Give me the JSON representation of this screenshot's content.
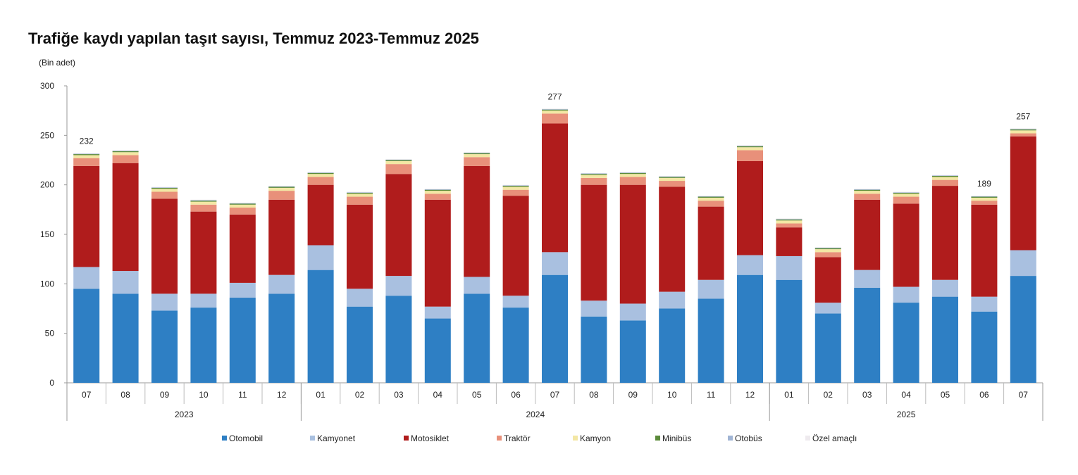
{
  "chart_data": {
    "type": "bar",
    "stacked": true,
    "title": "Trafiğe kaydı yapılan taşıt sayısı, Temmuz 2023-Temmuz 2025",
    "ylabel": "(Bin adet)",
    "xlabel": "",
    "ylim": [
      0,
      300
    ],
    "yticks": [
      0,
      50,
      100,
      150,
      200,
      250,
      300
    ],
    "grid": false,
    "legend_position": "bottom",
    "categories": [
      "07",
      "08",
      "09",
      "10",
      "11",
      "12",
      "01",
      "02",
      "03",
      "04",
      "05",
      "06",
      "07",
      "08",
      "09",
      "10",
      "11",
      "12",
      "01",
      "02",
      "03",
      "04",
      "05",
      "06",
      "07"
    ],
    "year_groups": [
      {
        "label": "2023",
        "count": 6
      },
      {
        "label": "2024",
        "count": 12
      },
      {
        "label": "2025",
        "count": 7
      }
    ],
    "series": [
      {
        "name": "Otomobil",
        "color": "#2e7fc4",
        "values": [
          95,
          90,
          73,
          76,
          86,
          90,
          114,
          77,
          88,
          65,
          90,
          76,
          109,
          67,
          63,
          75,
          85,
          109,
          104,
          70,
          96,
          81,
          87,
          72,
          108
        ]
      },
      {
        "name": "Kamyonet",
        "color": "#a9c0e0",
        "values": [
          22,
          23,
          17,
          14,
          15,
          19,
          25,
          18,
          20,
          12,
          17,
          12,
          23,
          16,
          17,
          17,
          19,
          20,
          24,
          11,
          18,
          16,
          17,
          15,
          26
        ]
      },
      {
        "name": "Motosiklet",
        "color": "#b01c1c",
        "values": [
          102,
          109,
          96,
          83,
          69,
          76,
          61,
          85,
          103,
          108,
          112,
          101,
          130,
          117,
          120,
          106,
          74,
          95,
          29,
          46,
          71,
          84,
          95,
          93,
          115
        ]
      },
      {
        "name": "Traktör",
        "color": "#e8907a",
        "values": [
          8,
          8,
          7,
          7,
          7,
          9,
          8,
          8,
          10,
          6,
          9,
          6,
          10,
          7,
          8,
          6,
          6,
          11,
          4,
          5,
          6,
          7,
          6,
          4,
          3
        ]
      },
      {
        "name": "Kamyon",
        "color": "#f3e7a4",
        "values": [
          3,
          3,
          3,
          3,
          3,
          3,
          3,
          3,
          3,
          3,
          3,
          3,
          3,
          3,
          3,
          3,
          3,
          3,
          3,
          3,
          3,
          3,
          3,
          3,
          3
        ]
      },
      {
        "name": "Minibüs",
        "color": "#5b8a3a",
        "values": [
          1,
          1,
          1,
          1,
          1,
          1,
          1,
          1,
          1,
          1,
          1,
          1,
          1,
          1,
          1,
          1,
          1,
          1,
          1,
          1,
          1,
          1,
          1,
          1,
          1
        ]
      },
      {
        "name": "Otobüs",
        "color": "#a0b4d4",
        "values": [
          0.5,
          0.5,
          0.5,
          0.5,
          0.5,
          0.5,
          0.5,
          0.5,
          0.5,
          0.5,
          0.5,
          0.5,
          0.5,
          0.5,
          0.5,
          0.5,
          0.5,
          0.5,
          0.5,
          0.5,
          0.5,
          0.5,
          0.5,
          0.5,
          0.5
        ]
      },
      {
        "name": "Özel amaçlı",
        "color": "#eeeaee",
        "values": [
          0.5,
          0.5,
          0.5,
          0.5,
          0.5,
          0.5,
          0.5,
          0.5,
          0.5,
          0.5,
          0.5,
          0.5,
          0.5,
          0.5,
          0.5,
          0.5,
          0.5,
          0.5,
          0.5,
          0.5,
          0.5,
          0.5,
          0.5,
          0.5,
          0.5
        ]
      }
    ],
    "annotations": [
      {
        "index": 0,
        "label": "232"
      },
      {
        "index": 12,
        "label": "277"
      },
      {
        "index": 23,
        "label": "189"
      },
      {
        "index": 24,
        "label": "257"
      }
    ]
  }
}
